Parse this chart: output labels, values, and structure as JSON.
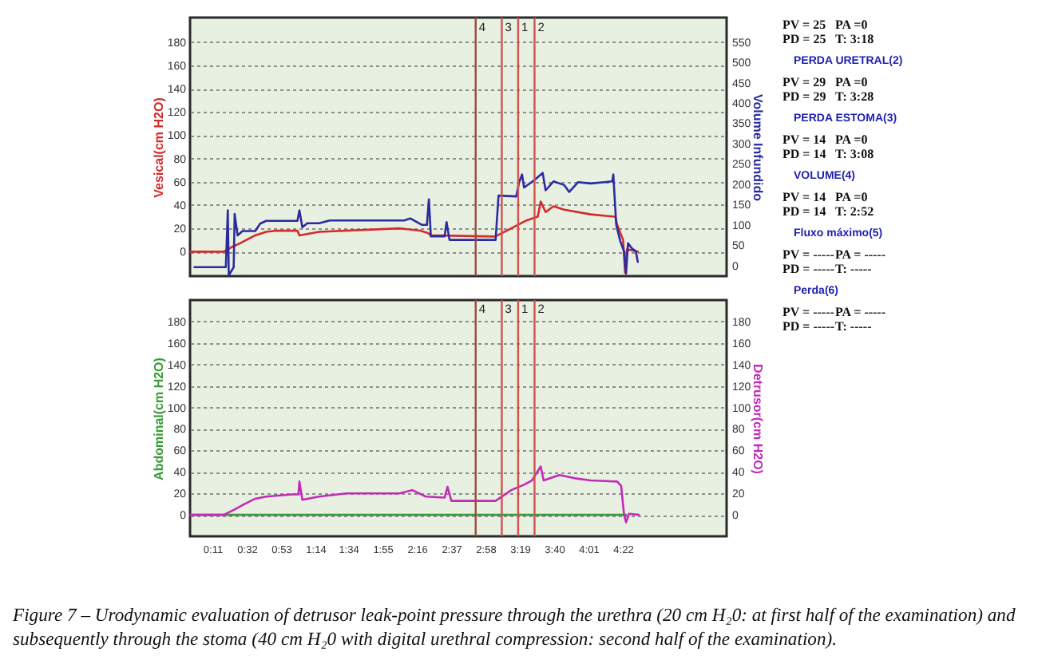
{
  "chart_data": [
    {
      "type": "line",
      "ylabel": "Vesical(cm H2O)",
      "y2label": "Volume Infundido",
      "xlim": [
        -0.045,
        5.425
      ],
      "ylim": [
        -21,
        201
      ],
      "yticks": [
        0,
        20,
        40,
        60,
        80,
        100,
        120,
        140,
        160,
        180
      ],
      "y2lim": [
        -26,
        610
      ],
      "y2ticks": [
        0,
        50,
        100,
        150,
        200,
        250,
        300,
        350,
        400,
        450,
        500,
        550
      ],
      "grid": "y",
      "tick_labels": "y",
      "line_style": "solid",
      "series": [
        {
          "color": "#d42a2a",
          "x": [
            -0.04,
            0.3,
            0.38,
            0.46,
            0.62,
            0.73,
            0.84,
            1.05,
            1.07,
            1.27,
            1.82,
            2.09,
            2.3,
            2.38,
            2.41,
            3.06,
            3.09,
            3.23,
            3.39,
            3.5,
            3.53,
            3.58,
            3.66,
            3.77,
            4.04,
            4.29,
            4.31,
            4.37,
            4.39,
            4.41,
            4.52
          ],
          "values": [
            0,
            0,
            4,
            7,
            14,
            17,
            18,
            18,
            14,
            17,
            19,
            20,
            18,
            16,
            14,
            13,
            14,
            20,
            27,
            30,
            43,
            34,
            39,
            36,
            32,
            30,
            23,
            10,
            -18,
            2,
            0
          ]
        },
        {
          "color": "#2b2ba0",
          "axis": "y2",
          "x": [
            0.0,
            0.32,
            0.34,
            0.35,
            0.4,
            0.41,
            0.44,
            0.49,
            0.62,
            0.67,
            0.73,
            1.05,
            1.07,
            1.1,
            1.15,
            1.27,
            1.38,
            2.14,
            2.2,
            2.32,
            2.37,
            2.39,
            2.41,
            2.55,
            2.57,
            2.6,
            3.07,
            3.1,
            3.28,
            3.31,
            3.34,
            3.36,
            3.47,
            3.55,
            3.58,
            3.66,
            3.77,
            3.82,
            3.91,
            4.04,
            4.18,
            4.26,
            4.27,
            4.3,
            4.34,
            4.38,
            4.4,
            4.42,
            4.46,
            4.5,
            4.52
          ],
          "values": [
            -4,
            -4,
            136,
            -24,
            -4,
            127,
            74,
            85,
            85,
            103,
            110,
            110,
            136,
            94,
            104,
            104,
            111,
            111,
            116,
            100,
            100,
            163,
            72,
            72,
            107,
            63,
            63,
            172,
            170,
            205,
            224,
            192,
            211,
            228,
            185,
            207,
            198,
            181,
            205,
            202,
            205,
            207,
            224,
            100,
            61,
            35,
            -20,
            55,
            42,
            35,
            9
          ]
        }
      ],
      "ref_lines": [
        {
          "axis": "x",
          "value": 2.867,
          "color": "#9c4a40"
        },
        {
          "axis": "x",
          "value": 3.133,
          "color": "#d0524c"
        },
        {
          "axis": "x",
          "value": 3.3,
          "color": "#d0524c"
        },
        {
          "axis": "x",
          "value": 3.467,
          "color": "#d0524c"
        }
      ],
      "annotations": [
        {
          "text": "4",
          "x": 2.867,
          "y": 192
        },
        {
          "text": "3",
          "x": 3.133,
          "y": 192
        },
        {
          "text": "1",
          "x": 3.3,
          "y": 192
        },
        {
          "text": "2",
          "x": 3.467,
          "y": 192
        }
      ]
    },
    {
      "type": "line",
      "ylabel": "Abdominal(cm H2O)",
      "y2label": "Detrusor(cm H2O)",
      "xlim": [
        -0.045,
        5.425
      ],
      "xticks": [
        {
          "value": 0.183,
          "label": "0:11"
        },
        {
          "value": 0.533,
          "label": "0:32"
        },
        {
          "value": 0.883,
          "label": "0:53"
        },
        {
          "value": 1.233,
          "label": "1:14"
        },
        {
          "value": 1.567,
          "label": "1:34"
        },
        {
          "value": 1.917,
          "label": "1:55"
        },
        {
          "value": 2.267,
          "label": "2:16"
        },
        {
          "value": 2.617,
          "label": "2:37"
        },
        {
          "value": 2.967,
          "label": "2:58"
        },
        {
          "value": 3.317,
          "label": "3:19"
        },
        {
          "value": 3.667,
          "label": "3:40"
        },
        {
          "value": 4.017,
          "label": "4:01"
        },
        {
          "value": 4.367,
          "label": "4:22"
        }
      ],
      "ylim": [
        -20,
        200
      ],
      "yticks": [
        0,
        20,
        40,
        60,
        80,
        100,
        120,
        140,
        160,
        180
      ],
      "y2lim": [
        -20,
        200
      ],
      "y2ticks": [
        0,
        20,
        40,
        60,
        80,
        100,
        120,
        140,
        160,
        180
      ],
      "grid": "y",
      "line_style": "solid",
      "series": [
        {
          "color": "#3a9a3a",
          "x": [
            -0.04,
            4.4
          ],
          "values": [
            0,
            0
          ]
        },
        {
          "color": "#c22ab8",
          "axis": "y2",
          "x": [
            -0.04,
            0.3,
            0.41,
            0.51,
            0.62,
            0.73,
            1.0,
            1.06,
            1.07,
            1.1,
            1.27,
            1.55,
            2.09,
            2.22,
            2.36,
            2.55,
            2.58,
            2.62,
            3.07,
            3.23,
            3.36,
            3.44,
            3.53,
            3.56,
            3.72,
            3.88,
            4.04,
            4.31,
            4.35,
            4.38,
            4.4,
            4.43,
            4.53
          ],
          "values": [
            0,
            0,
            5,
            10,
            15,
            17,
            19,
            19,
            31,
            14,
            17,
            20,
            20,
            23,
            17,
            16,
            26,
            13,
            13,
            23,
            28,
            32,
            45,
            32,
            37,
            34,
            32,
            31,
            27,
            0,
            -7,
            1,
            0
          ]
        }
      ],
      "ref_lines": [
        {
          "axis": "x",
          "value": 2.867,
          "color": "#9c4a40"
        },
        {
          "axis": "x",
          "value": 3.133,
          "color": "#d0524c"
        },
        {
          "axis": "x",
          "value": 3.3,
          "color": "#d0524c"
        },
        {
          "axis": "x",
          "value": 3.467,
          "color": "#d0524c"
        }
      ],
      "annotations": [
        {
          "text": "4",
          "x": 2.867,
          "y": 191
        },
        {
          "text": "3",
          "x": 3.133,
          "y": 191
        },
        {
          "text": "1",
          "x": 3.3,
          "y": 191
        },
        {
          "text": "2",
          "x": 3.467,
          "y": 191
        },
        "Figure 7 – Urodynamic evaluation of detrusor leak-point pressure through the urethra (20 cm H₂0: at first half of the examination) and subsequently through the stoma (40 cm H₂0 with digital urethral compression: second half of the examination)."
      ]
    },
    {
      "type": "other",
      "annotations": [
        "PV = 25",
        "PA =0",
        "PD = 25",
        "T: 3:18",
        "PERDA URETRAL(2)",
        "PV = 29",
        "PA =0",
        "PD = 29",
        "T: 3:28",
        "PERDA ESTOMA(3)",
        "PV = 14",
        "PA =0",
        "PD = 14",
        "T: 3:08",
        "VOLUME(4)",
        "PV = 14",
        "PA =0",
        "PD = 14",
        "T: 2:52",
        "Fluxo máximo(5)",
        "PV = -----",
        "PA = -----",
        "PD = -----",
        "T: -----",
        "Perda(6)",
        "PV = -----",
        "PA = -----",
        "PD = -----",
        "T: -----"
      ]
    }
  ]
}
